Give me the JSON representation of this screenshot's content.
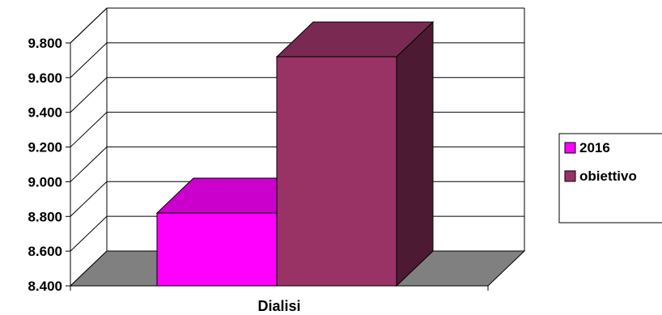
{
  "chart_data": {
    "type": "bar",
    "style": "3d-clustered-column",
    "categories": [
      "Dialisi"
    ],
    "series": [
      {
        "name": "2016",
        "values": [
          8820
        ],
        "color": "#ff00ff",
        "top_color": "#cc00cc"
      },
      {
        "name": "obiettivo",
        "values": [
          9720
        ],
        "color": "#993366",
        "top_color": "#7a2a52",
        "side_color": "#4d1a33"
      }
    ],
    "y_ticks": [
      "8.400",
      "8.600",
      "8.800",
      "9.000",
      "9.200",
      "9.400",
      "9.600",
      "9.800"
    ],
    "ylim": [
      8400,
      9800
    ],
    "xlabel": "",
    "ylabel": "",
    "title": "",
    "grid": true,
    "legend": "right",
    "floor_color": "#808080"
  }
}
